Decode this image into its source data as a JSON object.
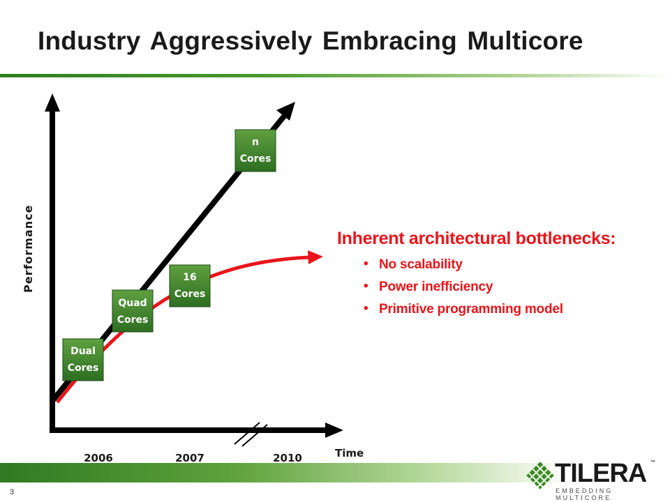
{
  "slide": {
    "title": "Industry Aggressively Embracing Multicore",
    "page_number": "3"
  },
  "diagram": {
    "y_axis_label": "Performance",
    "x_axis_label": "Time",
    "years": [
      "2006",
      "2007",
      "2010"
    ],
    "chips": [
      {
        "line1": "Dual",
        "line2": "Cores"
      },
      {
        "line1": "Quad",
        "line2": "Cores"
      },
      {
        "line1": "16",
        "line2": "Cores"
      },
      {
        "line1": "n",
        "line2": "Cores"
      }
    ],
    "colors": {
      "chip_fill": "#2e6e22",
      "chip_highlight": "#5fa040",
      "ideal_line": "#000000",
      "actual_curve": "#e8151b"
    }
  },
  "bottlenecks": {
    "heading": "Inherent architectural bottlenecks:",
    "bullet": "•",
    "items": [
      "No scalability",
      "Power inefficiency",
      "Primitive programming model"
    ]
  },
  "brand": {
    "name": "TILERA",
    "trademark": "™",
    "tagline": "EMBEDDING MULTICORE",
    "accent_color": "#3a8a25"
  }
}
